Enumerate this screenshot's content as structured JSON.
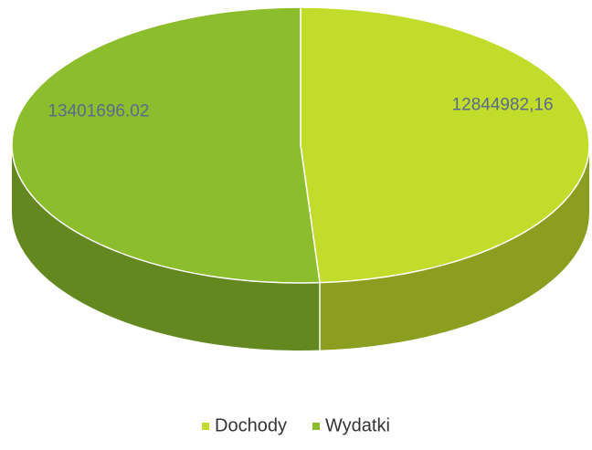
{
  "chart_data": {
    "type": "pie3d",
    "categories": [
      "Dochody",
      "Wydatki"
    ],
    "values": [
      12844982.16,
      13401696.02
    ],
    "value_labels": [
      "12844982,16",
      "13401696.02"
    ],
    "colors": [
      "#c2dc2c",
      "#8bbd2c"
    ],
    "legend": "bottom"
  }
}
